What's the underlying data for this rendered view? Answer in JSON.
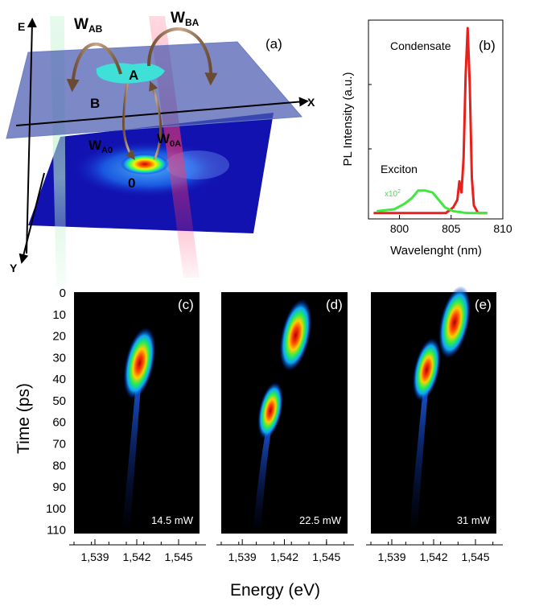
{
  "panel_a": {
    "label": "(a)",
    "axis_e": "E",
    "axis_x": "X",
    "axis_y": "Y",
    "w_ab": "W",
    "w_ab_sub": "AB",
    "w_ba": "W",
    "w_ba_sub": "BA",
    "w_a0": "W",
    "w_a0_sub": "A0",
    "w_0a": "W",
    "w_0a_sub": "0A",
    "state_a": "A",
    "state_b": "B",
    "state_0": "0"
  },
  "panel_b": {
    "label": "(b)",
    "ylabel": "PL Intensity (a.u.)",
    "xlabel": "Wavelenght (nm)",
    "condensate_label": "Condensate",
    "exciton_label": "Exciton",
    "scale_label": "x10",
    "scale_exp": "2",
    "colors": {
      "condensate": "#e8201c",
      "exciton": "#3ee83e"
    }
  },
  "streak": {
    "ylabel": "Time (ps)",
    "xlabel": "Energy (eV)",
    "panels": [
      {
        "label": "(c)",
        "power": "14.5 mW"
      },
      {
        "label": "(d)",
        "power": "22.5 mW"
      },
      {
        "label": "(e)",
        "power": "31 mW"
      }
    ]
  },
  "chart_data": [
    {
      "type": "line",
      "xlabel": "Wavelenght (nm)",
      "ylabel": "PL Intensity (a.u.)",
      "xlim": [
        797,
        810
      ],
      "xticks": [
        800,
        805,
        810
      ],
      "series": [
        {
          "name": "Condensate",
          "x": [
            797.5,
            804.5,
            805.2,
            805.6,
            805.8,
            806.0,
            806.2,
            806.4,
            806.6,
            806.8,
            807.0,
            807.2,
            807.6,
            808.5
          ],
          "y": [
            0.01,
            0.01,
            0.04,
            0.08,
            0.18,
            0.12,
            0.3,
            0.75,
            1.0,
            0.7,
            0.2,
            0.05,
            0.01,
            0.01
          ]
        },
        {
          "name": "Exciton",
          "x": [
            797.8,
            799.5,
            800.5,
            801.2,
            801.8,
            802.5,
            803.2,
            803.8,
            804.4,
            805.2,
            806.5,
            808.5
          ],
          "y": [
            0.02,
            0.03,
            0.06,
            0.09,
            0.13,
            0.13,
            0.12,
            0.08,
            0.04,
            0.02,
            0.01,
            0.01
          ]
        }
      ]
    },
    {
      "type": "heatmap",
      "xlabel": "Energy (eV)",
      "ylabel": "Time (ps)",
      "xticks": [
        "1,539",
        "1,542",
        "1,545"
      ],
      "yticks": [
        0,
        10,
        20,
        30,
        40,
        50,
        60,
        70,
        80,
        90,
        100,
        110
      ],
      "panels": [
        {
          "name": "14.5 mW",
          "blobs": [
            {
              "e": 1.5422,
              "t": 33,
              "intensity": 1.0
            }
          ]
        },
        {
          "name": "22.5 mW",
          "blobs": [
            {
              "e": 1.5428,
              "t": 20,
              "intensity": 1.0
            },
            {
              "e": 1.541,
              "t": 55,
              "intensity": 0.75
            }
          ]
        },
        {
          "name": "31 mW",
          "blobs": [
            {
              "e": 1.5435,
              "t": 14,
              "intensity": 1.0
            },
            {
              "e": 1.5415,
              "t": 36,
              "intensity": 0.85
            }
          ]
        }
      ]
    }
  ]
}
